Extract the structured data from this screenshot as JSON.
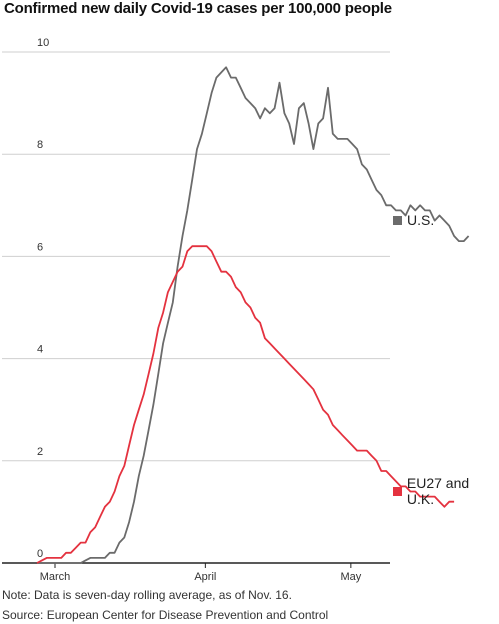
{
  "title": "Confirmed new daily Covid-19 cases per 100,000 people",
  "note": "Note: Data is seven-day rolling average, as of Nov. 16.",
  "source": "Source: European Center for Disease Prevention and Control",
  "colors": {
    "us": "#6b6b6b",
    "eu": "#e4323f",
    "grid": "#cfcfcf",
    "baseline": "#222222"
  },
  "chart_data": {
    "type": "line",
    "title": "Confirmed new daily Covid-19 cases per 100,000 people",
    "xlabel": "",
    "ylabel": "",
    "ylim": [
      0,
      10
    ],
    "yticks": [
      "0",
      "2",
      "4",
      "6",
      "8",
      "10"
    ],
    "xticks": [
      {
        "label": "March",
        "day": 0
      },
      {
        "label": "April",
        "day": 31
      },
      {
        "label": "May",
        "day": 61
      }
    ],
    "x_range_days": [
      0,
      92
    ],
    "grid": "horizontal",
    "legend": "right, at line ends",
    "series": [
      {
        "name": "U.S.",
        "color": "#6b6b6b",
        "points": [
          [
            0,
            0
          ],
          [
            3,
            0
          ],
          [
            6,
            0
          ],
          [
            9,
            0
          ],
          [
            10,
            0.05
          ],
          [
            11,
            0.1
          ],
          [
            12,
            0.1
          ],
          [
            13,
            0.1
          ],
          [
            14,
            0.1
          ],
          [
            15,
            0.2
          ],
          [
            16,
            0.2
          ],
          [
            17,
            0.4
          ],
          [
            18,
            0.5
          ],
          [
            19,
            0.8
          ],
          [
            20,
            1.2
          ],
          [
            21,
            1.7
          ],
          [
            22,
            2.1
          ],
          [
            23,
            2.6
          ],
          [
            24,
            3.1
          ],
          [
            25,
            3.7
          ],
          [
            26,
            4.3
          ],
          [
            27,
            4.7
          ],
          [
            28,
            5.1
          ],
          [
            29,
            5.8
          ],
          [
            30,
            6.4
          ],
          [
            31,
            6.9
          ],
          [
            32,
            7.5
          ],
          [
            33,
            8.1
          ],
          [
            34,
            8.4
          ],
          [
            35,
            8.8
          ],
          [
            36,
            9.2
          ],
          [
            37,
            9.5
          ],
          [
            38,
            9.6
          ],
          [
            39,
            9.7
          ],
          [
            40,
            9.5
          ],
          [
            41,
            9.5
          ],
          [
            42,
            9.3
          ],
          [
            43,
            9.1
          ],
          [
            44,
            9.0
          ],
          [
            45,
            8.9
          ],
          [
            46,
            8.7
          ],
          [
            47,
            8.9
          ],
          [
            48,
            8.8
          ],
          [
            49,
            8.9
          ],
          [
            50,
            9.4
          ],
          [
            51,
            8.8
          ],
          [
            52,
            8.6
          ],
          [
            53,
            8.2
          ],
          [
            54,
            8.9
          ],
          [
            55,
            9.0
          ],
          [
            56,
            8.6
          ],
          [
            57,
            8.1
          ],
          [
            58,
            8.6
          ],
          [
            59,
            8.7
          ],
          [
            60,
            9.3
          ],
          [
            61,
            8.4
          ],
          [
            62,
            8.3
          ],
          [
            63,
            8.3
          ],
          [
            64,
            8.3
          ],
          [
            65,
            8.2
          ],
          [
            66,
            8.1
          ],
          [
            67,
            7.8
          ],
          [
            68,
            7.7
          ],
          [
            69,
            7.5
          ],
          [
            70,
            7.3
          ],
          [
            71,
            7.2
          ],
          [
            72,
            7.0
          ],
          [
            73,
            7.0
          ],
          [
            74,
            6.9
          ],
          [
            75,
            6.9
          ],
          [
            76,
            6.8
          ],
          [
            77,
            7.0
          ],
          [
            78,
            6.9
          ],
          [
            79,
            7.0
          ],
          [
            80,
            6.9
          ],
          [
            81,
            6.9
          ],
          [
            82,
            6.7
          ],
          [
            83,
            6.8
          ],
          [
            84,
            6.7
          ],
          [
            85,
            6.6
          ],
          [
            86,
            6.4
          ],
          [
            87,
            6.3
          ],
          [
            88,
            6.3
          ],
          [
            89,
            6.4
          ]
        ]
      },
      {
        "name": "EU27 and U.K.",
        "color": "#e4323f",
        "points": [
          [
            0,
            0
          ],
          [
            1,
            0.05
          ],
          [
            2,
            0.1
          ],
          [
            3,
            0.1
          ],
          [
            4,
            0.1
          ],
          [
            5,
            0.1
          ],
          [
            6,
            0.2
          ],
          [
            7,
            0.2
          ],
          [
            8,
            0.3
          ],
          [
            9,
            0.4
          ],
          [
            10,
            0.4
          ],
          [
            11,
            0.6
          ],
          [
            12,
            0.7
          ],
          [
            13,
            0.9
          ],
          [
            14,
            1.1
          ],
          [
            15,
            1.2
          ],
          [
            16,
            1.4
          ],
          [
            17,
            1.7
          ],
          [
            18,
            1.9
          ],
          [
            19,
            2.3
          ],
          [
            20,
            2.7
          ],
          [
            21,
            3.0
          ],
          [
            22,
            3.3
          ],
          [
            23,
            3.7
          ],
          [
            24,
            4.1
          ],
          [
            25,
            4.6
          ],
          [
            26,
            4.9
          ],
          [
            27,
            5.3
          ],
          [
            28,
            5.5
          ],
          [
            29,
            5.7
          ],
          [
            30,
            5.8
          ],
          [
            31,
            6.1
          ],
          [
            32,
            6.2
          ],
          [
            33,
            6.2
          ],
          [
            34,
            6.2
          ],
          [
            35,
            6.2
          ],
          [
            36,
            6.1
          ],
          [
            37,
            5.9
          ],
          [
            38,
            5.7
          ],
          [
            39,
            5.7
          ],
          [
            40,
            5.6
          ],
          [
            41,
            5.4
          ],
          [
            42,
            5.3
          ],
          [
            43,
            5.1
          ],
          [
            44,
            5.0
          ],
          [
            45,
            4.8
          ],
          [
            46,
            4.7
          ],
          [
            47,
            4.4
          ],
          [
            48,
            4.3
          ],
          [
            49,
            4.2
          ],
          [
            50,
            4.1
          ],
          [
            51,
            4.0
          ],
          [
            52,
            3.9
          ],
          [
            53,
            3.8
          ],
          [
            54,
            3.7
          ],
          [
            55,
            3.6
          ],
          [
            56,
            3.5
          ],
          [
            57,
            3.4
          ],
          [
            58,
            3.2
          ],
          [
            59,
            3.0
          ],
          [
            60,
            2.9
          ],
          [
            61,
            2.7
          ],
          [
            62,
            2.6
          ],
          [
            63,
            2.5
          ],
          [
            64,
            2.4
          ],
          [
            65,
            2.3
          ],
          [
            66,
            2.2
          ],
          [
            67,
            2.2
          ],
          [
            68,
            2.2
          ],
          [
            69,
            2.1
          ],
          [
            70,
            2.0
          ],
          [
            71,
            1.8
          ],
          [
            72,
            1.8
          ],
          [
            73,
            1.7
          ],
          [
            74,
            1.6
          ],
          [
            75,
            1.5
          ],
          [
            76,
            1.5
          ],
          [
            77,
            1.4
          ],
          [
            78,
            1.4
          ],
          [
            79,
            1.3
          ],
          [
            80,
            1.3
          ],
          [
            81,
            1.3
          ],
          [
            82,
            1.3
          ],
          [
            83,
            1.2
          ],
          [
            84,
            1.1
          ],
          [
            85,
            1.2
          ],
          [
            86,
            1.2
          ]
        ]
      }
    ]
  }
}
